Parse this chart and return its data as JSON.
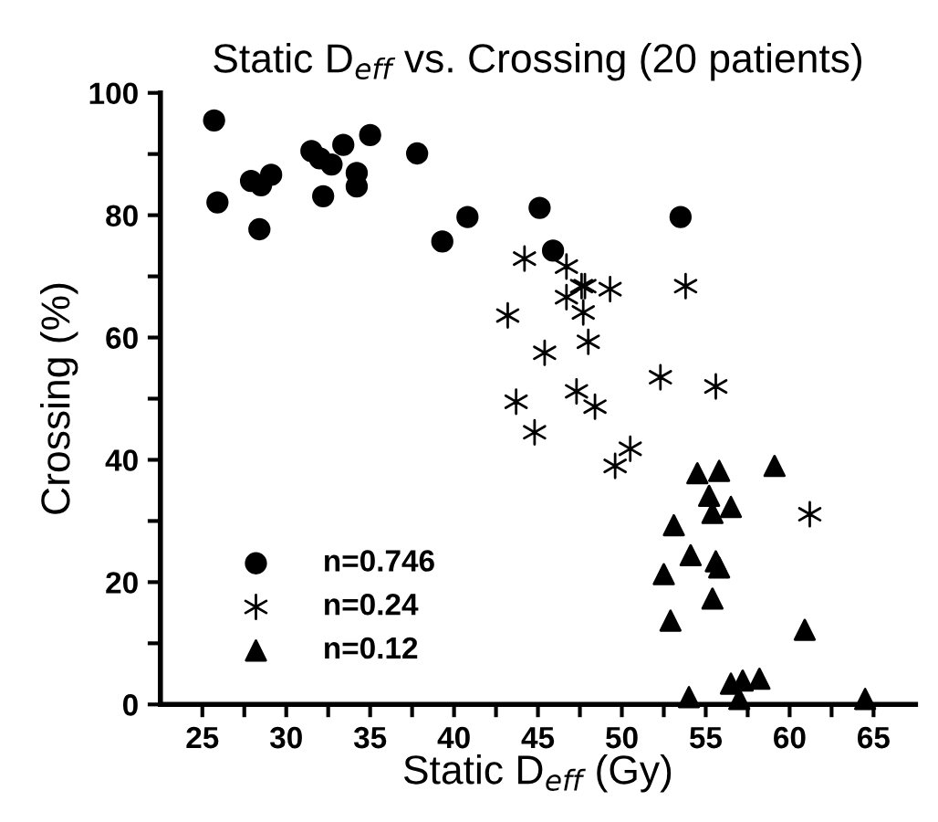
{
  "chart_data": {
    "type": "scatter",
    "title": "Static D$_{eff}$ vs. Crossing (20 patients)",
    "xlabel": "Static D$_{eff}$ (Gy)",
    "ylabel": "Crossing (%)",
    "xlim": [
      22.5,
      67.5
    ],
    "ylim": [
      0,
      100
    ],
    "xticks": [
      25,
      {
        "value": 27.5,
        "label": null
      },
      30,
      {
        "value": 32.5,
        "label": null
      },
      35,
      {
        "value": 37.5,
        "label": null
      },
      40,
      {
        "value": 42.5,
        "label": null
      },
      45,
      {
        "value": 47.5,
        "label": null
      },
      50,
      {
        "value": 52.5,
        "label": null
      },
      55,
      {
        "value": 57.5,
        "label": null
      },
      60,
      {
        "value": 62.5,
        "label": null
      },
      65
    ],
    "yticks": [
      0,
      {
        "value": 10,
        "label": null
      },
      20,
      {
        "value": 30,
        "label": null
      },
      40,
      {
        "value": 50,
        "label": null
      },
      60,
      {
        "value": 70,
        "label": null
      },
      80,
      {
        "value": 90,
        "label": null
      },
      100
    ],
    "grid": false,
    "legend": "bottom left",
    "series": [
      {
        "name": "n=0.746",
        "color": "#000000",
        "marker": "circle",
        "x": [
          25.7,
          25.9,
          27.9,
          28.5,
          29.1,
          28.4,
          31.5,
          32.0,
          32.7,
          33.4,
          32.2,
          34.2,
          34.2,
          35.0,
          37.8,
          39.3,
          40.8,
          45.1,
          53.5,
          45.9
        ],
        "values": [
          95.5,
          82.1,
          85.6,
          84.9,
          86.6,
          77.7,
          90.5,
          89.3,
          88.3,
          91.5,
          83.1,
          86.9,
          84.7,
          93.1,
          90.1,
          75.7,
          79.7,
          81.2,
          79.7,
          74.2
        ]
      },
      {
        "name": "n=0.24",
        "color": "#000000",
        "marker": "cross",
        "x": [
          44.2,
          46.7,
          47.8,
          47.6,
          46.7,
          49.3,
          47.7,
          48.0,
          53.8,
          45.4,
          43.2,
          52.3,
          55.6,
          43.7,
          47.3,
          48.4,
          44.8,
          50.5,
          49.6,
          61.2
        ],
        "values": [
          72.9,
          71.6,
          68.4,
          68.4,
          66.6,
          67.9,
          64.1,
          59.3,
          68.4,
          57.5,
          63.6,
          53.5,
          52.0,
          49.5,
          51.2,
          48.7,
          44.5,
          41.8,
          39.0,
          31.1
        ]
      },
      {
        "name": "n=0.12",
        "color": "#000000",
        "marker": "triangle",
        "x": [
          54.5,
          55.8,
          59.1,
          55.2,
          56.5,
          55.4,
          53.1,
          54.1,
          55.6,
          55.8,
          52.5,
          55.4,
          52.9,
          60.9,
          56.5,
          57.2,
          58.2,
          54.0,
          57.0,
          64.5
        ],
        "values": [
          37.8,
          38.2,
          39.0,
          34.1,
          32.3,
          31.3,
          29.3,
          24.4,
          23.4,
          22.4,
          21.3,
          17.3,
          13.7,
          12.2,
          3.4,
          3.9,
          4.2,
          1.2,
          0.9,
          0.9
        ]
      }
    ]
  }
}
